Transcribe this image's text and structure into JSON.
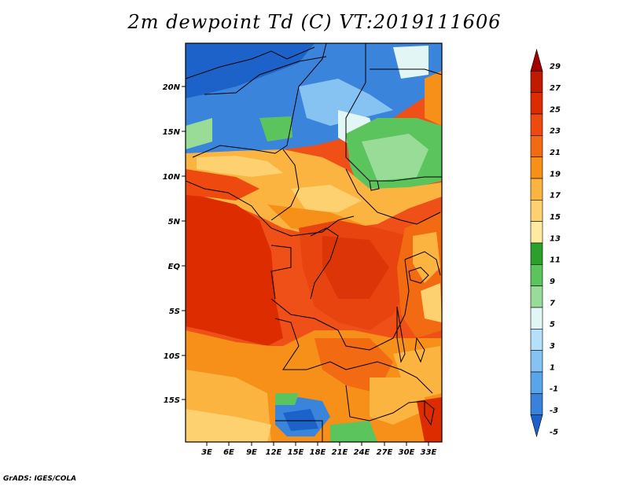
{
  "title": "2m dewpoint Td (C) VT:2019111606",
  "credit": "GrADS: IGES/COLA",
  "lat_labels": [
    "20N",
    "15N",
    "10N",
    "5N",
    "EQ",
    "5S",
    "10S",
    "15S"
  ],
  "lon_labels": [
    "3E",
    "6E",
    "9E",
    "12E",
    "15E",
    "18E",
    "21E",
    "24E",
    "27E",
    "30E",
    "33E"
  ],
  "colorbar": {
    "labels": [
      "29",
      "27",
      "25",
      "23",
      "21",
      "19",
      "17",
      "15",
      "13",
      "11",
      "9",
      "7",
      "5",
      "3",
      "1",
      "-1",
      "-3",
      "-5"
    ],
    "colors": [
      "#a00000",
      "#c01a00",
      "#dc2c00",
      "#ee4a10",
      "#f26a12",
      "#f79018",
      "#fbb440",
      "#fdd070",
      "#feeaa0",
      "#2ca02c",
      "#5cc45c",
      "#98dc98",
      "#e2f6f6",
      "#b4e0fa",
      "#86c2f2",
      "#5aa4ea",
      "#3882dc",
      "#1c62c8"
    ]
  }
}
